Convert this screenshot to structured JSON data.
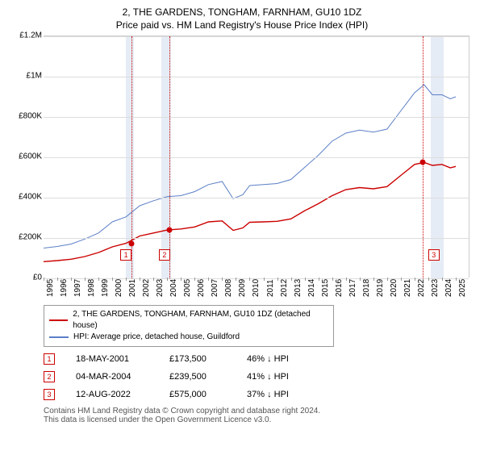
{
  "title": "2, THE GARDENS, TONGHAM, FARNHAM, GU10 1DZ",
  "subtitle": "Price paid vs. HM Land Registry's House Price Index (HPI)",
  "chart": {
    "type": "line",
    "xlim": [
      1995,
      2026
    ],
    "ylim": [
      0,
      1200000
    ],
    "ytick_step": 200000,
    "yticks": [
      "£0",
      "£200K",
      "£400K",
      "£600K",
      "£800K",
      "£1M",
      "£1.2M"
    ],
    "xticks": [
      1995,
      1996,
      1997,
      1998,
      1999,
      2000,
      2001,
      2002,
      2003,
      2004,
      2005,
      2006,
      2007,
      2008,
      2009,
      2010,
      2011,
      2012,
      2013,
      2014,
      2015,
      2016,
      2017,
      2018,
      2019,
      2020,
      2021,
      2022,
      2023,
      2024,
      2025
    ],
    "background_color": "#ffffff",
    "grid_color": "#dddddd",
    "series": [
      {
        "name": "HPI: Average price, detached house, Guildford",
        "color": "#5b7fc7",
        "width": 1,
        "data": [
          [
            1995,
            150000
          ],
          [
            1996,
            158000
          ],
          [
            1997,
            170000
          ],
          [
            1998,
            195000
          ],
          [
            1999,
            225000
          ],
          [
            2000,
            280000
          ],
          [
            2001,
            305000
          ],
          [
            2002,
            360000
          ],
          [
            2003,
            385000
          ],
          [
            2004,
            405000
          ],
          [
            2005,
            410000
          ],
          [
            2006,
            430000
          ],
          [
            2007,
            465000
          ],
          [
            2008,
            480000
          ],
          [
            2008.8,
            395000
          ],
          [
            2009.5,
            415000
          ],
          [
            2010,
            460000
          ],
          [
            2011,
            465000
          ],
          [
            2012,
            470000
          ],
          [
            2013,
            490000
          ],
          [
            2014,
            550000
          ],
          [
            2015,
            610000
          ],
          [
            2016,
            680000
          ],
          [
            2017,
            720000
          ],
          [
            2018,
            735000
          ],
          [
            2019,
            725000
          ],
          [
            2020,
            740000
          ],
          [
            2021,
            830000
          ],
          [
            2022,
            920000
          ],
          [
            2022.7,
            960000
          ],
          [
            2023.3,
            910000
          ],
          [
            2024,
            910000
          ],
          [
            2024.6,
            890000
          ],
          [
            2025,
            900000
          ]
        ]
      },
      {
        "name": "2, THE GARDENS, TONGHAM, FARNHAM, GU10 1DZ (detached house)",
        "color": "#cc0000",
        "width": 1.4,
        "data": [
          [
            1995,
            83000
          ],
          [
            1996,
            88000
          ],
          [
            1997,
            95000
          ],
          [
            1998,
            108000
          ],
          [
            1999,
            128000
          ],
          [
            2000,
            156000
          ],
          [
            2001,
            173500
          ],
          [
            2002,
            210000
          ],
          [
            2003,
            225000
          ],
          [
            2004,
            239500
          ],
          [
            2005,
            245000
          ],
          [
            2006,
            255000
          ],
          [
            2007,
            280000
          ],
          [
            2008,
            285000
          ],
          [
            2008.8,
            238000
          ],
          [
            2009.5,
            250000
          ],
          [
            2010,
            278000
          ],
          [
            2011,
            280000
          ],
          [
            2012,
            283000
          ],
          [
            2013,
            295000
          ],
          [
            2014,
            335000
          ],
          [
            2015,
            370000
          ],
          [
            2016,
            410000
          ],
          [
            2017,
            440000
          ],
          [
            2018,
            450000
          ],
          [
            2019,
            444000
          ],
          [
            2020,
            455000
          ],
          [
            2021,
            510000
          ],
          [
            2022,
            565000
          ],
          [
            2022.7,
            575000
          ],
          [
            2023.3,
            560000
          ],
          [
            2024,
            565000
          ],
          [
            2024.6,
            548000
          ],
          [
            2025,
            555000
          ]
        ]
      }
    ],
    "bands": [
      {
        "x": 2001.0,
        "width_years": 0.6,
        "color": "#c8d4e8"
      },
      {
        "x": 2003.6,
        "width_years": 0.7,
        "color": "#c8d4e8"
      },
      {
        "x": 2023.2,
        "width_years": 0.9,
        "color": "#c8d4e8"
      }
    ],
    "markers": [
      {
        "num": "1",
        "x": 2001.38,
        "y": 173500,
        "box_x": 2001.0,
        "box_y": 115000
      },
      {
        "num": "2",
        "x": 2004.18,
        "y": 239500,
        "box_x": 2003.8,
        "box_y": 115000
      },
      {
        "num": "3",
        "x": 2022.62,
        "y": 575000,
        "box_x": 2023.4,
        "box_y": 115000
      }
    ]
  },
  "legend": {
    "s1_label": "2, THE GARDENS, TONGHAM, FARNHAM, GU10 1DZ (detached house)",
    "s1_color": "#cc0000",
    "s2_label": "HPI: Average price, detached house, Guildford",
    "s2_color": "#5b7fc7"
  },
  "events": [
    {
      "num": "1",
      "date": "18-MAY-2001",
      "price": "£173,500",
      "delta": "46% ↓ HPI"
    },
    {
      "num": "2",
      "date": "04-MAR-2004",
      "price": "£239,500",
      "delta": "41% ↓ HPI"
    },
    {
      "num": "3",
      "date": "12-AUG-2022",
      "price": "£575,000",
      "delta": "37% ↓ HPI"
    }
  ],
  "footer": "Contains HM Land Registry data © Crown copyright and database right 2024.\nThis data is licensed under the Open Government Licence v3.0."
}
